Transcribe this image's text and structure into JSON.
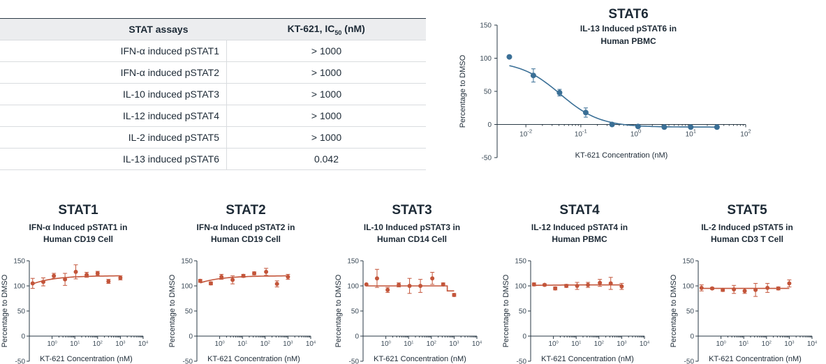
{
  "table": {
    "headers": [
      "STAT assays",
      "KT-621, IC",
      "50",
      " (nM)"
    ],
    "rows": [
      [
        "IFN-α induced pSTAT1",
        "> 1000"
      ],
      [
        "IFN-α induced pSTAT2",
        "> 1000"
      ],
      [
        "IL-10 induced pSTAT3",
        "> 1000"
      ],
      [
        "IL-12 induced pSTAT4",
        "> 1000"
      ],
      [
        "IL-2 induced pSTAT5",
        "> 1000"
      ],
      [
        "IL-13 induced pSTAT6",
        "0.042"
      ]
    ]
  },
  "colors": {
    "stat6": "#3a6f96",
    "others": "#c3553a"
  },
  "chart_data": [
    {
      "id": "stat6",
      "type": "scatter",
      "title": "STAT6",
      "subtitle": [
        "IL-13 Induced pSTAT6 in",
        "Human PBMC"
      ],
      "xlabel": "KT-621 Concentration (nM)",
      "ylabel": "Percentage to DMSO",
      "xscale": "log",
      "xlim": [
        0.003,
        100
      ],
      "ylim": [
        -50,
        150
      ],
      "yticks": [
        -50,
        0,
        50,
        100,
        150
      ],
      "xticks": [
        "10-2",
        "10-1",
        "100",
        "101",
        "102"
      ],
      "points": [
        {
          "x": 0.005,
          "y": 102,
          "err": 0
        },
        {
          "x": 0.0137,
          "y": 74,
          "err": 10
        },
        {
          "x": 0.041,
          "y": 48,
          "err": 5
        },
        {
          "x": 0.123,
          "y": 18,
          "err": 7
        },
        {
          "x": 0.37,
          "y": 0,
          "err": 2
        },
        {
          "x": 1.1,
          "y": -3,
          "err": 2
        },
        {
          "x": 3.3,
          "y": -4,
          "err": 1
        },
        {
          "x": 10,
          "y": -4,
          "err": 1
        },
        {
          "x": 30,
          "y": -4,
          "err": 1
        }
      ],
      "fit": {
        "top": 96,
        "bottom": -4,
        "ic50": 0.042,
        "hill": 1.2
      }
    },
    {
      "id": "stat1",
      "type": "scatter",
      "title": "STAT1",
      "subtitle": [
        "IFN-α Induced pSTAT1 in",
        "Human CD19 Cell"
      ],
      "xlabel": "KT-621 Concentration (nM)",
      "ylabel": "Percentage to DMSO",
      "xscale": "log",
      "xlim": [
        0.1,
        10000
      ],
      "ylim": [
        -50,
        150
      ],
      "yticks": [
        -50,
        0,
        50,
        100,
        150
      ],
      "xticks": [
        "100",
        "101",
        "102",
        "103",
        "104"
      ],
      "points": [
        {
          "x": 0.14,
          "y": 105,
          "err": 10
        },
        {
          "x": 0.41,
          "y": 108,
          "err": 8
        },
        {
          "x": 1.2,
          "y": 120,
          "err": 5
        },
        {
          "x": 3.7,
          "y": 113,
          "err": 12
        },
        {
          "x": 11,
          "y": 128,
          "err": 14
        },
        {
          "x": 33,
          "y": 122,
          "err": 5
        },
        {
          "x": 100,
          "y": 125,
          "err": 4
        },
        {
          "x": 300,
          "y": 109,
          "err": 4
        },
        {
          "x": 1000,
          "y": 116,
          "err": 4
        }
      ],
      "fit": {
        "type": "flat-rise",
        "start": 104,
        "end": 120
      }
    },
    {
      "id": "stat2",
      "type": "scatter",
      "title": "STAT2",
      "subtitle": [
        "IFN-α Induced pSTAT2 in",
        "Human CD19 Cell"
      ],
      "xlabel": "KT-621 Concentration (nM)",
      "ylabel": "Percentage to DMSO",
      "xscale": "log",
      "xlim": [
        0.1,
        10000
      ],
      "ylim": [
        -50,
        150
      ],
      "yticks": [
        -50,
        0,
        50,
        100,
        150
      ],
      "xticks": [
        "100",
        "101",
        "102",
        "103",
        "104"
      ],
      "points": [
        {
          "x": 0.14,
          "y": 110,
          "err": 3
        },
        {
          "x": 0.41,
          "y": 105,
          "err": 3
        },
        {
          "x": 1.2,
          "y": 118,
          "err": 5
        },
        {
          "x": 3.7,
          "y": 112,
          "err": 8
        },
        {
          "x": 11,
          "y": 120,
          "err": 3
        },
        {
          "x": 33,
          "y": 125,
          "err": 3
        },
        {
          "x": 110,
          "y": 128,
          "err": 7
        },
        {
          "x": 330,
          "y": 104,
          "err": 6
        },
        {
          "x": 1000,
          "y": 118,
          "err": 5
        }
      ],
      "fit": {
        "type": "flat-rise",
        "start": 106,
        "end": 120
      }
    },
    {
      "id": "stat3",
      "type": "scatter",
      "title": "STAT3",
      "subtitle": [
        "IL-10 Induced pSTAT3 in",
        "Human CD14 Cell"
      ],
      "xlabel": "KT-621 Concentration (nM)",
      "ylabel": "Percentage to DMSO",
      "xscale": "log",
      "xlim": [
        0.1,
        10000
      ],
      "ylim": [
        -50,
        150
      ],
      "yticks": [
        -50,
        0,
        50,
        100,
        150
      ],
      "xticks": [
        "100",
        "101",
        "102",
        "103",
        "104"
      ],
      "points": [
        {
          "x": 0.14,
          "y": 103,
          "err": 0
        },
        {
          "x": 0.41,
          "y": 115,
          "err": 18
        },
        {
          "x": 1.2,
          "y": 92,
          "err": 5
        },
        {
          "x": 3.7,
          "y": 102,
          "err": 4
        },
        {
          "x": 11,
          "y": 100,
          "err": 15
        },
        {
          "x": 33,
          "y": 100,
          "err": 13
        },
        {
          "x": 110,
          "y": 115,
          "err": 12
        },
        {
          "x": 330,
          "y": 103,
          "err": 3
        },
        {
          "x": 1000,
          "y": 82,
          "err": 3
        }
      ],
      "fit": {
        "type": "step",
        "level": 100,
        "drop_at": 500,
        "drop_to": 90
      }
    },
    {
      "id": "stat4",
      "type": "scatter",
      "title": "STAT4",
      "subtitle": [
        "IL-12 Induced pSTAT4 in",
        "Human PBMC"
      ],
      "xlabel": "KT-621 Concentration (nM)",
      "ylabel": "Percentage to DMSO",
      "xscale": "log",
      "xlim": [
        0.1,
        10000
      ],
      "ylim": [
        -50,
        150
      ],
      "yticks": [
        -50,
        0,
        50,
        100,
        150
      ],
      "xticks": [
        "100",
        "101",
        "102",
        "103",
        "104"
      ],
      "points": [
        {
          "x": 0.14,
          "y": 103,
          "err": 3
        },
        {
          "x": 0.41,
          "y": 102,
          "err": 2
        },
        {
          "x": 1.2,
          "y": 95,
          "err": 3
        },
        {
          "x": 3.7,
          "y": 100,
          "err": 3
        },
        {
          "x": 11,
          "y": 100,
          "err": 7
        },
        {
          "x": 33,
          "y": 102,
          "err": 5
        },
        {
          "x": 110,
          "y": 106,
          "err": 7
        },
        {
          "x": 330,
          "y": 105,
          "err": 12
        },
        {
          "x": 1000,
          "y": 99,
          "err": 6
        }
      ],
      "fit": {
        "type": "flat-rise",
        "start": 101,
        "end": 102
      }
    },
    {
      "id": "stat5",
      "type": "scatter",
      "title": "STAT5",
      "subtitle": [
        "IL-2 Induced pSTAT5 in",
        "Human CD3 T Cell"
      ],
      "xlabel": "KT-621 Concentration (nM)",
      "ylabel": "Percentage to DMSO",
      "xscale": "log",
      "xlim": [
        0.1,
        10000
      ],
      "ylim": [
        -50,
        150
      ],
      "yticks": [
        -50,
        0,
        50,
        100,
        150
      ],
      "xticks": [
        "100",
        "101",
        "102",
        "103",
        "104"
      ],
      "points": [
        {
          "x": 0.14,
          "y": 96,
          "err": 6
        },
        {
          "x": 0.41,
          "y": 95,
          "err": 2
        },
        {
          "x": 1.2,
          "y": 92,
          "err": 3
        },
        {
          "x": 3.7,
          "y": 93,
          "err": 8
        },
        {
          "x": 11,
          "y": 90,
          "err": 5
        },
        {
          "x": 33,
          "y": 92,
          "err": 13
        },
        {
          "x": 110,
          "y": 96,
          "err": 9
        },
        {
          "x": 330,
          "y": 95,
          "err": 3
        },
        {
          "x": 1000,
          "y": 105,
          "err": 7
        }
      ],
      "fit": {
        "type": "flat-rise",
        "start": 95,
        "end": 95
      }
    }
  ]
}
